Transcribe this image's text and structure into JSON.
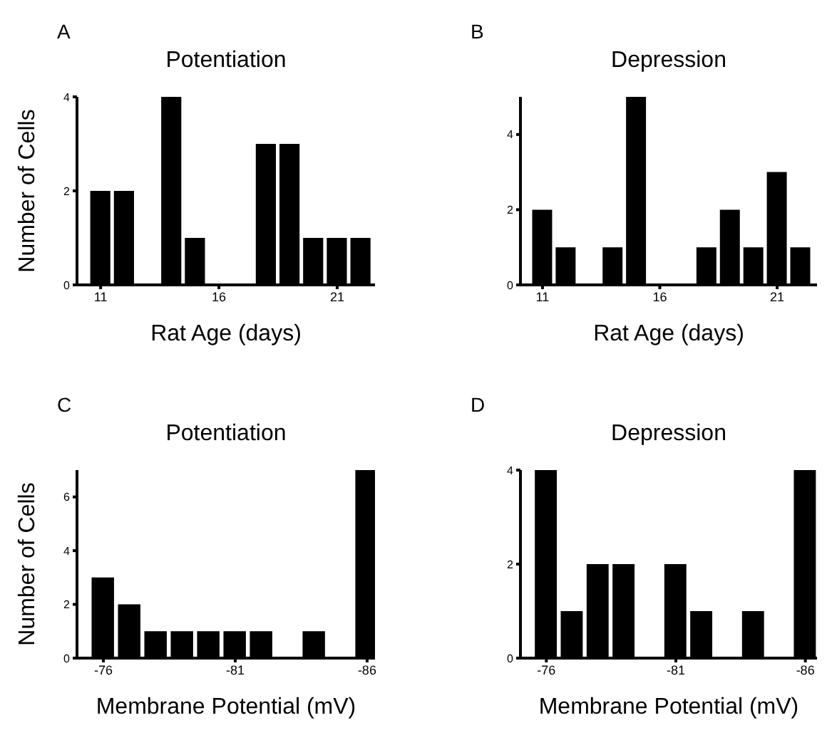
{
  "chart_data": [
    {
      "type": "bar",
      "title": "A",
      "subtitle": "Potentiation",
      "ylabel": "Number of Cells",
      "xlabel": "Rat Age (days)",
      "color": "#000000",
      "x": [
        11,
        12,
        14,
        15,
        18,
        19,
        20,
        21,
        22
      ],
      "values": [
        2,
        2,
        4,
        1,
        3,
        3,
        1,
        1,
        1
      ],
      "xlim": [
        10,
        22.6
      ],
      "xticks": [
        11,
        16,
        21
      ],
      "ylim": [
        0,
        4
      ],
      "yticks": [
        0,
        2,
        4
      ]
    },
    {
      "type": "bar",
      "title": "B",
      "subtitle": "Depression",
      "xlabel": "Rat Age (days)",
      "color": "#000000",
      "x": [
        11,
        12,
        14,
        15,
        18,
        19,
        20,
        21,
        22
      ],
      "values": [
        2,
        1,
        1,
        5,
        1,
        2,
        1,
        3,
        1
      ],
      "xlim": [
        10.06,
        22.7
      ],
      "xticks": [
        11,
        16,
        21
      ],
      "ylim": [
        0,
        5
      ],
      "yticks": [
        0,
        2,
        4
      ]
    },
    {
      "type": "bar",
      "title": "C",
      "subtitle": "Potentiation",
      "ylabel": "Number of Cells",
      "xlabel": "Membrane Potential (mV)",
      "color": "#000000",
      "x": [
        -76,
        -77,
        -78,
        -79,
        -80,
        -81,
        -82,
        -84,
        -86
      ],
      "values": [
        3,
        2,
        1,
        1,
        1,
        1,
        1,
        1,
        7
      ],
      "xlim": [
        -75,
        -86.3
      ],
      "xticks": [
        -76,
        -81,
        -86
      ],
      "ylim": [
        0,
        7
      ],
      "yticks": [
        0,
        2,
        4,
        6
      ]
    },
    {
      "type": "bar",
      "title": "D",
      "subtitle": "Depression",
      "xlabel": "Membrane Potential (mV)",
      "color": "#000000",
      "x": [
        -76,
        -77,
        -78,
        -79,
        -81,
        -82,
        -84,
        -86
      ],
      "values": [
        4,
        1,
        2,
        2,
        2,
        1,
        1,
        4
      ],
      "xlim": [
        -75,
        -86.45
      ],
      "xticks": [
        -76,
        -81,
        -86
      ],
      "ylim": [
        0,
        4
      ],
      "yticks": [
        0,
        2,
        4
      ]
    }
  ]
}
